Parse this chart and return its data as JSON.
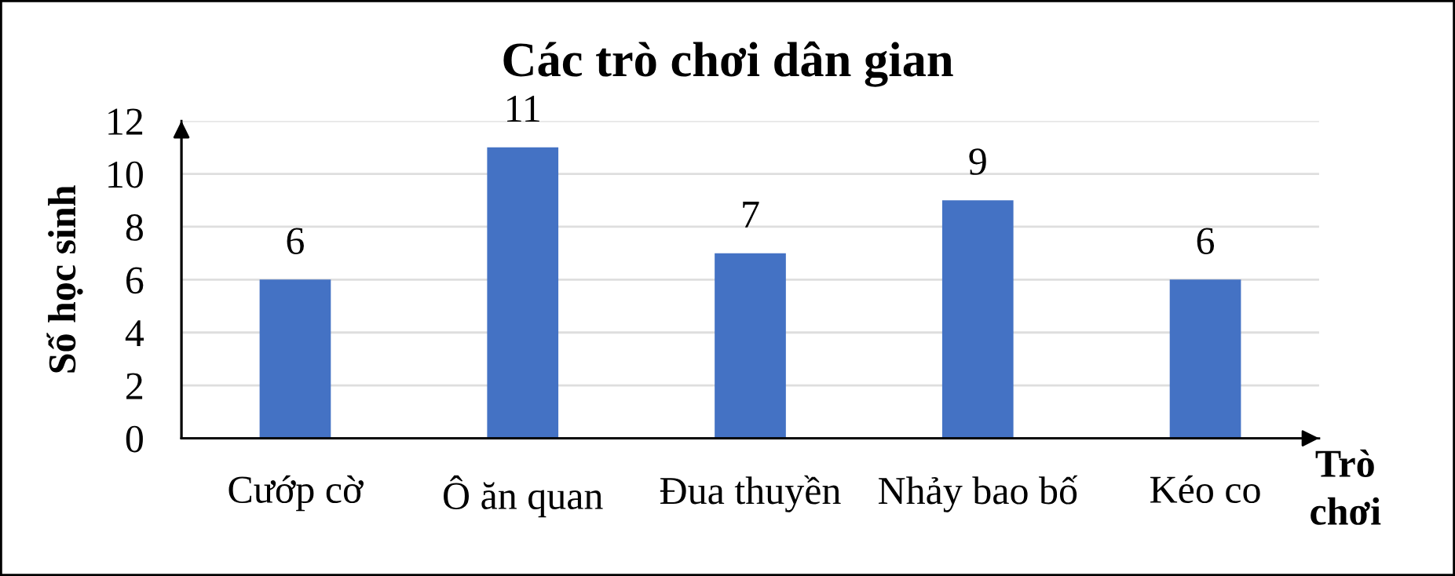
{
  "chart_data": {
    "type": "bar",
    "title": "Các trò chơi dân gian",
    "xlabel": "Trò chơi",
    "ylabel": "Số học sinh",
    "categories": [
      "Cướp cờ",
      "Ô ăn quan",
      "Đua thuyền",
      "Nhảy bao bố",
      "Kéo co"
    ],
    "values": [
      6,
      11,
      7,
      9,
      6
    ],
    "color": "#4472c4",
    "ylim": [
      0,
      12
    ],
    "yticks": [
      0,
      2,
      4,
      6,
      8,
      10,
      12
    ],
    "grid": "y",
    "data_labels": true
  }
}
